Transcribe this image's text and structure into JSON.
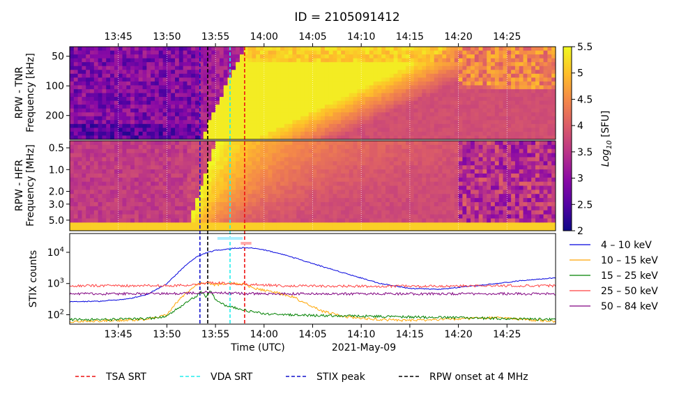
{
  "title": "ID = 2105091412",
  "time_ticks": [
    "13:45",
    "13:50",
    "13:55",
    "14:00",
    "14:05",
    "14:10",
    "14:15",
    "14:20",
    "14:25"
  ],
  "xlabel": "Time (UTC)",
  "date_label": "2021-May-09",
  "panels": {
    "tnr": {
      "ylabel_1": "RPW - TNR",
      "ylabel_2": "Frequency [kHz]",
      "ticks": [
        {
          "label": "50",
          "value": 50
        },
        {
          "label": "100",
          "value": 100
        },
        {
          "label": "200",
          "value": 200
        }
      ]
    },
    "hfr": {
      "ylabel_1": "RPW - HFR",
      "ylabel_2": "Frequency [MHz]",
      "ticks": [
        {
          "label": "0.5",
          "value": 0.5
        },
        {
          "label": "1.0",
          "value": 1.0
        },
        {
          "label": "2.0",
          "value": 2.0
        },
        {
          "label": "3.0",
          "value": 3.0
        },
        {
          "label": "5.0",
          "value": 5.0
        }
      ]
    },
    "stix": {
      "ylabel": "STIX counts",
      "ticks": [
        {
          "label_base": "10",
          "label_exp": "2",
          "value": 100
        },
        {
          "label_base": "10",
          "label_exp": "3",
          "value": 1000
        },
        {
          "label_base": "10",
          "label_exp": "4",
          "value": 10000
        }
      ]
    }
  },
  "colorbar": {
    "label_main": "Log",
    "label_sub": "10",
    "label_rest": " [SFU]",
    "ticks": [
      "2",
      "2.5",
      "3",
      "3.5",
      "4",
      "4.5",
      "5",
      "5.5"
    ],
    "range": [
      2,
      5.5
    ],
    "colors": [
      "#0d0887",
      "#5302a3",
      "#8b0aa5",
      "#b83289",
      "#db5c68",
      "#f48849",
      "#febd2a",
      "#f0f921"
    ]
  },
  "legend_stix": [
    {
      "label": "4 – 10 keV",
      "color": "#0000dd"
    },
    {
      "label": "10 – 15 keV",
      "color": "#ffa500"
    },
    {
      "label": "15 – 25 keV",
      "color": "#008000"
    },
    {
      "label": "25 – 50 keV",
      "color": "#ff4040"
    },
    {
      "label": "50 – 84 keV",
      "color": "#800080"
    }
  ],
  "legend_markers": [
    {
      "label": "TSA SRT",
      "color": "#ee1111"
    },
    {
      "label": "VDA SRT",
      "color": "#22eeee"
    },
    {
      "label": "STIX peak",
      "color": "#1111cc"
    },
    {
      "label": "RPW onset at 4 MHz",
      "color": "#000000"
    }
  ],
  "chart_data": {
    "type": "heatmap",
    "title": "ID = 2105091412",
    "date": "2021-May-09",
    "x_range": [
      "13:40",
      "14:30"
    ],
    "markers": [
      {
        "name": "TSA SRT",
        "time": "13:58.0",
        "color": "#ee1111"
      },
      {
        "name": "VDA SRT",
        "time": "13:56.5",
        "color": "#22eeee"
      },
      {
        "name": "STIX peak",
        "time": "13:53.4",
        "color": "#1111cc"
      },
      {
        "name": "RPW onset at 4 MHz",
        "time": "13:54.2",
        "color": "#000000"
      }
    ],
    "vda_bar": {
      "start": "13:55.2",
      "end": "13:57.8",
      "color": "#aaeeff"
    },
    "tsa_bar": {
      "start": "13:57.6",
      "end": "13:58.7",
      "color": "#ffaaaa"
    },
    "tnr_spectrogram": {
      "freq_range_khz": [
        40,
        350
      ],
      "log_scale": true,
      "units": "Log10 [SFU]"
    },
    "hfr_spectrogram": {
      "freq_range_mhz": [
        0.4,
        7.0
      ],
      "log_scale": true,
      "units": "Log10 [SFU]"
    },
    "stix_lightcurves": {
      "ylabel": "STIX counts",
      "log_scale": true,
      "ylim": [
        50,
        40000
      ],
      "series": [
        {
          "name": "4 – 10 keV",
          "color": "#0000dd",
          "times": [
            40,
            43,
            46,
            48,
            50,
            51,
            52,
            53,
            54,
            55,
            56,
            57,
            58,
            59,
            60,
            62,
            64,
            66,
            68,
            70,
            72,
            75,
            78,
            81,
            84,
            87,
            89.8
          ],
          "values": [
            260,
            270,
            320,
            450,
            1000,
            2000,
            4000,
            7000,
            9500,
            11500,
            12500,
            13500,
            14000,
            13500,
            12000,
            8500,
            5500,
            3500,
            2300,
            1500,
            1000,
            700,
            650,
            800,
            1000,
            1300,
            1500
          ]
        },
        {
          "name": "10 – 15 keV",
          "color": "#ffa500",
          "times": [
            40,
            44,
            48,
            50,
            51,
            52,
            53,
            54,
            55,
            56,
            57,
            58,
            59,
            60,
            61,
            62,
            63,
            64,
            66,
            68,
            70,
            72,
            75,
            78,
            81,
            84,
            87,
            89.8
          ],
          "values": [
            60,
            65,
            70,
            100,
            250,
            500,
            900,
            1050,
            900,
            1000,
            1000,
            950,
            700,
            600,
            520,
            450,
            380,
            250,
            130,
            90,
            75,
            70,
            65,
            70,
            75,
            80,
            70,
            60
          ]
        },
        {
          "name": "15 – 25 keV",
          "color": "#008000",
          "times": [
            40,
            44,
            48,
            50,
            51,
            52,
            53,
            53.5,
            54,
            54.5,
            55,
            56,
            57,
            58,
            59,
            60,
            62,
            65,
            70,
            75,
            80,
            85,
            89.8
          ],
          "values": [
            70,
            70,
            75,
            90,
            150,
            250,
            380,
            550,
            380,
            600,
            300,
            200,
            170,
            140,
            120,
            110,
            100,
            95,
            90,
            85,
            80,
            75,
            70
          ]
        },
        {
          "name": "25 – 50 keV",
          "color": "#ff4040",
          "times": [
            40,
            50,
            52,
            53,
            54,
            55,
            57,
            58,
            60,
            62,
            65,
            70,
            75,
            80,
            85,
            89.8
          ],
          "values": [
            850,
            850,
            880,
            950,
            1000,
            1050,
            1000,
            950,
            900,
            850,
            830,
            820,
            820,
            830,
            850,
            850
          ]
        },
        {
          "name": "50 – 84 keV",
          "color": "#800080",
          "times": [
            40,
            50,
            53,
            54,
            55,
            58,
            60,
            70,
            80,
            89.8
          ],
          "values": [
            470,
            470,
            500,
            530,
            500,
            480,
            470,
            470,
            470,
            470
          ]
        }
      ]
    }
  }
}
